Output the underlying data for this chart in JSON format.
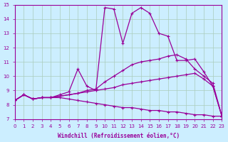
{
  "xlabel": "Windchill (Refroidissement éolien,°C)",
  "bg_color": "#cceeff",
  "line_color": "#990099",
  "grid_color": "#aaccbb",
  "xlim": [
    0,
    23
  ],
  "ylim": [
    7,
    15
  ],
  "yticks": [
    7,
    8,
    9,
    10,
    11,
    12,
    13,
    14,
    15
  ],
  "xticks": [
    0,
    1,
    2,
    3,
    4,
    5,
    6,
    7,
    8,
    9,
    10,
    11,
    12,
    13,
    14,
    15,
    16,
    17,
    18,
    19,
    20,
    21,
    22,
    23
  ],
  "curve1_x": [
    0,
    1,
    2,
    3,
    4,
    5,
    6,
    7,
    8,
    9,
    10,
    11,
    12,
    13,
    14,
    15,
    16,
    17,
    18,
    19,
    20,
    21,
    22,
    23
  ],
  "curve1_y": [
    8.3,
    8.7,
    8.4,
    8.5,
    8.5,
    8.6,
    8.7,
    8.8,
    8.9,
    9.0,
    9.1,
    9.2,
    9.4,
    9.5,
    9.6,
    9.7,
    9.8,
    9.9,
    10.0,
    10.1,
    10.2,
    9.8,
    9.3,
    7.2
  ],
  "curve2_x": [
    0,
    1,
    2,
    3,
    4,
    5,
    6,
    7,
    8,
    9,
    10,
    11,
    12,
    13,
    14,
    15,
    16,
    17,
    18,
    19,
    20,
    21,
    22,
    23
  ],
  "curve2_y": [
    8.3,
    8.7,
    8.4,
    8.5,
    8.5,
    8.6,
    8.7,
    8.8,
    9.0,
    9.1,
    9.6,
    10.0,
    10.4,
    10.8,
    11.0,
    11.1,
    11.2,
    11.4,
    11.5,
    11.2,
    10.5,
    10.0,
    9.5,
    7.2
  ],
  "curve3_x": [
    0,
    1,
    2,
    3,
    4,
    5,
    6,
    7,
    8,
    9,
    10,
    11,
    12,
    13,
    14,
    15,
    16,
    17,
    18,
    19,
    20,
    21,
    22,
    23
  ],
  "curve3_y": [
    8.3,
    8.7,
    8.4,
    8.5,
    8.5,
    8.7,
    8.9,
    10.5,
    9.3,
    9.0,
    14.8,
    14.7,
    12.3,
    14.4,
    14.8,
    14.4,
    13.0,
    12.8,
    11.1,
    11.1,
    11.2,
    10.3,
    9.3,
    7.2
  ],
  "curve4_x": [
    0,
    1,
    2,
    3,
    4,
    5,
    6,
    7,
    8,
    9,
    10,
    11,
    12,
    13,
    14,
    15,
    16,
    17,
    18,
    19,
    20,
    21,
    22,
    23
  ],
  "curve4_y": [
    8.3,
    8.7,
    8.4,
    8.5,
    8.5,
    8.5,
    8.4,
    8.3,
    8.2,
    8.1,
    8.0,
    7.9,
    7.8,
    7.8,
    7.7,
    7.6,
    7.6,
    7.5,
    7.5,
    7.4,
    7.3,
    7.3,
    7.2,
    7.2
  ]
}
